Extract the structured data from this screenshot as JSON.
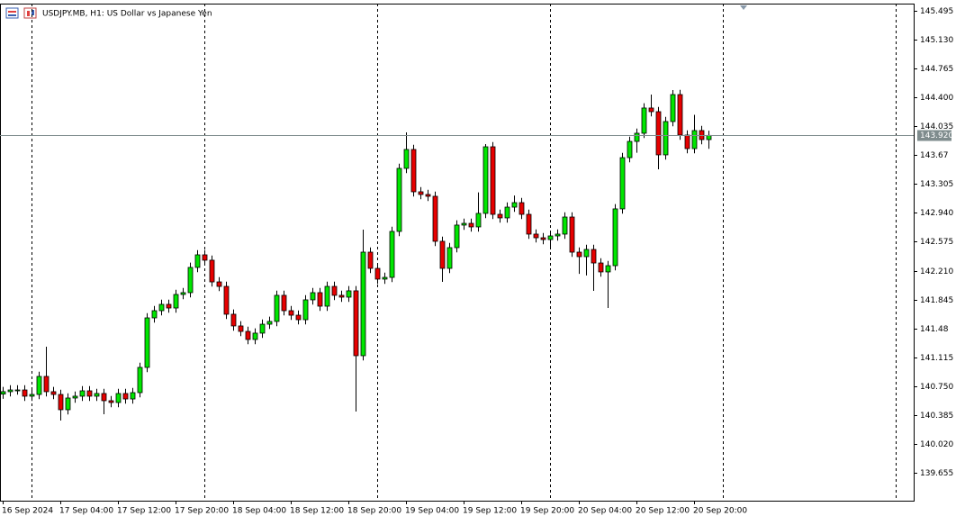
{
  "chart_data": {
    "type": "candlestick",
    "title": "USDJPY.MB, H1:  US Dollar vs Japanese Yen",
    "categories": [
      "16 Sep 2024",
      null,
      null,
      null,
      null,
      null,
      null,
      null,
      "17 Sep 04:00",
      null,
      null,
      null,
      null,
      null,
      null,
      null,
      "17 Sep 12:00",
      null,
      null,
      null,
      null,
      null,
      null,
      null,
      "17 Sep 20:00",
      null,
      null,
      null,
      null,
      null,
      null,
      null,
      "18 Sep 04:00",
      null,
      null,
      null,
      null,
      null,
      null,
      null,
      "18 Sep 12:00",
      null,
      null,
      null,
      null,
      null,
      null,
      null,
      "18 Sep 20:00",
      null,
      null,
      null,
      null,
      null,
      null,
      null,
      "19 Sep 04:00",
      null,
      null,
      null,
      null,
      null,
      null,
      null,
      "19 Sep 12:00",
      null,
      null,
      null,
      null,
      null,
      null,
      null,
      "19 Sep 20:00",
      null,
      null,
      null,
      null,
      null,
      null,
      null,
      "20 Sep 04:00",
      null,
      null,
      null,
      null,
      null,
      null,
      null,
      "20 Sep 12:00",
      null,
      null,
      null,
      null,
      null,
      null,
      null,
      "20 Sep 20:00",
      null,
      null
    ],
    "open": [
      140.65,
      140.68,
      140.702,
      140.702,
      140.623,
      140.645,
      140.873,
      140.68,
      140.645,
      140.452,
      140.6,
      140.623,
      140.691,
      140.623,
      140.657,
      140.566,
      140.543,
      140.657,
      140.588,
      140.668,
      140.987,
      141.613,
      141.704,
      141.784,
      141.738,
      141.909,
      141.932,
      142.251,
      142.41,
      142.342,
      142.068,
      142.011,
      141.659,
      141.511,
      141.442,
      141.34,
      141.42,
      141.533,
      141.568,
      141.898,
      141.704,
      141.647,
      141.59,
      141.841,
      141.932,
      141.761,
      142.011,
      141.898,
      141.875,
      141.955,
      141.135,
      142.444,
      142.239,
      142.103,
      142.125,
      142.706,
      143.503,
      143.742,
      143.207,
      143.173,
      143.15,
      142.581,
      142.239,
      142.501,
      142.786,
      142.808,
      142.763,
      142.934,
      143.776,
      142.922,
      142.877,
      143.013,
      143.07,
      142.922,
      142.672,
      142.626,
      142.603,
      142.649,
      142.672,
      142.888,
      142.444,
      142.387,
      142.478,
      142.307,
      142.194,
      142.273,
      142.991,
      143.639,
      143.844,
      143.947,
      144.266,
      144.22,
      143.674,
      144.095,
      144.436,
      143.924,
      143.753,
      143.981,
      143.867
    ],
    "high": [
      140.74,
      140.762,
      140.762,
      140.762,
      140.705,
      140.933,
      141.249,
      140.74,
      140.705,
      140.66,
      140.683,
      140.751,
      140.751,
      140.717,
      140.717,
      140.626,
      140.717,
      140.717,
      140.728,
      141.047,
      141.673,
      141.764,
      141.844,
      141.844,
      141.969,
      141.992,
      142.311,
      142.47,
      142.47,
      142.402,
      142.128,
      142.071,
      141.719,
      141.571,
      141.502,
      141.48,
      141.593,
      141.628,
      141.958,
      141.958,
      141.764,
      141.707,
      141.901,
      141.992,
      141.992,
      142.071,
      142.071,
      141.958,
      142.015,
      142.015,
      142.729,
      142.504,
      142.299,
      142.185,
      142.766,
      143.563,
      143.958,
      143.802,
      143.267,
      143.233,
      143.21,
      142.641,
      142.561,
      142.846,
      142.868,
      142.868,
      143.2,
      143.81,
      143.836,
      142.982,
      143.073,
      143.16,
      143.13,
      142.982,
      142.732,
      142.686,
      142.709,
      142.732,
      142.948,
      142.948,
      142.504,
      142.538,
      142.538,
      142.367,
      142.333,
      143.051,
      143.699,
      143.904,
      144.007,
      144.326,
      144.436,
      144.28,
      144.155,
      144.493,
      144.496,
      143.984,
      144.18,
      144.041,
      143.98
    ],
    "low": [
      140.59,
      140.62,
      140.642,
      140.563,
      140.563,
      140.585,
      140.62,
      140.585,
      140.315,
      140.392,
      140.54,
      140.563,
      140.563,
      140.563,
      140.395,
      140.483,
      140.483,
      140.528,
      140.528,
      140.608,
      140.927,
      141.553,
      141.644,
      141.678,
      141.678,
      141.849,
      141.872,
      142.191,
      142.282,
      142.008,
      141.951,
      141.599,
      141.451,
      141.382,
      141.28,
      141.28,
      141.36,
      141.473,
      141.508,
      141.644,
      141.587,
      141.53,
      141.53,
      141.781,
      141.701,
      141.701,
      141.838,
      141.815,
      141.815,
      140.429,
      141.075,
      142.179,
      142.043,
      142.043,
      142.065,
      142.646,
      143.443,
      143.147,
      143.113,
      143.09,
      142.521,
      142.068,
      142.179,
      142.441,
      142.726,
      142.703,
      142.703,
      142.874,
      142.862,
      142.817,
      142.817,
      142.953,
      142.862,
      142.612,
      142.566,
      142.543,
      142.48,
      142.589,
      142.612,
      142.384,
      142.17,
      142.15,
      141.955,
      142.134,
      141.738,
      142.213,
      142.931,
      143.579,
      143.7,
      143.887,
      144.16,
      143.491,
      143.614,
      144.035,
      143.864,
      143.693,
      143.693,
      143.807,
      143.75
    ],
    "close": [
      140.68,
      140.702,
      140.702,
      140.623,
      140.645,
      140.873,
      140.68,
      140.645,
      140.452,
      140.6,
      140.623,
      140.691,
      140.623,
      140.657,
      140.566,
      140.543,
      140.657,
      140.588,
      140.668,
      140.987,
      141.613,
      141.704,
      141.784,
      141.738,
      141.909,
      141.932,
      142.251,
      142.41,
      142.342,
      142.068,
      142.011,
      141.659,
      141.511,
      141.442,
      141.34,
      141.42,
      141.533,
      141.568,
      141.898,
      141.704,
      141.647,
      141.59,
      141.841,
      141.932,
      141.761,
      142.011,
      141.898,
      141.875,
      141.955,
      141.135,
      142.444,
      142.239,
      142.103,
      142.125,
      142.706,
      143.503,
      143.742,
      143.207,
      143.173,
      143.15,
      142.581,
      142.239,
      142.501,
      142.786,
      142.808,
      142.763,
      142.934,
      143.776,
      142.922,
      142.877,
      143.013,
      143.07,
      142.922,
      142.672,
      142.626,
      142.603,
      142.649,
      142.672,
      142.888,
      142.444,
      142.387,
      142.478,
      142.307,
      142.194,
      142.273,
      142.991,
      143.639,
      143.844,
      143.947,
      144.266,
      144.22,
      143.674,
      144.095,
      144.436,
      143.924,
      143.753,
      143.981,
      143.867,
      143.92
    ],
    "up_color": "#00e600",
    "down_color": "#e60000",
    "ylim": [
      139.302,
      145.586
    ],
    "yticks": [
      145.495,
      {
        "value": 145.13,
        "label": "145.130"
      },
      144.765,
      {
        "value": 144.4,
        "label": "144.400"
      },
      144.035,
      143.67,
      143.305,
      {
        "value": 142.94,
        "label": "142.940"
      },
      142.575,
      {
        "value": 142.21,
        "label": "142.210"
      },
      141.845,
      141.48,
      141.115,
      {
        "value": 140.75,
        "label": "140.750"
      },
      140.385,
      {
        "value": 140.02,
        "label": "140.020"
      },
      139.655
    ],
    "current_price": {
      "value": 143.92,
      "label": "143.920"
    }
  }
}
